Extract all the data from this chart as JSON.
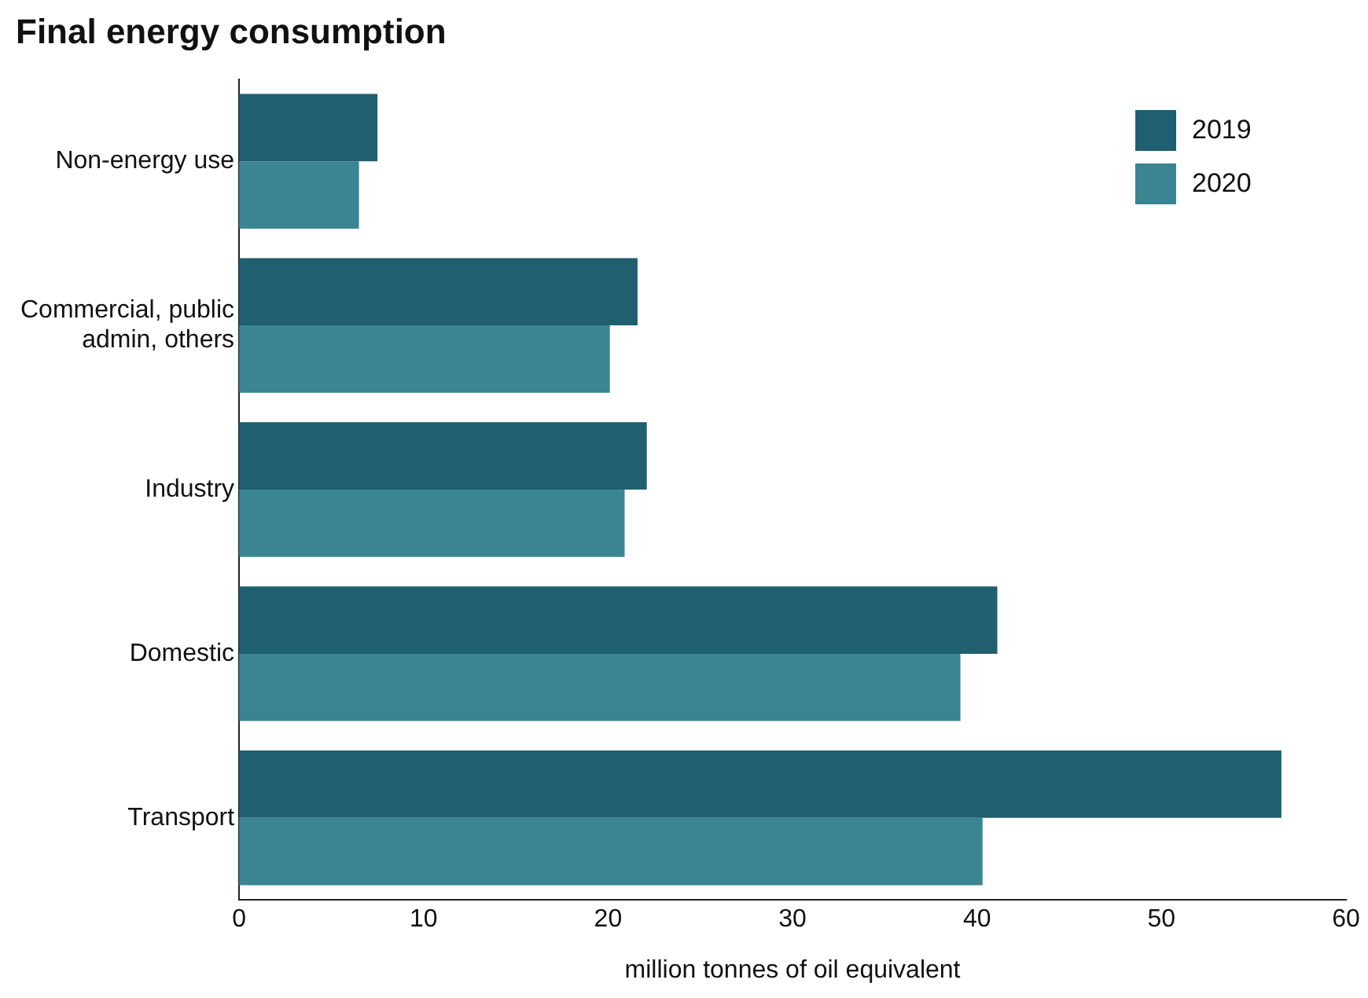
{
  "chart_data": {
    "type": "bar",
    "orientation": "horizontal",
    "title": "Final energy consumption",
    "xlabel": "million tonnes of oil equivalent",
    "categories": [
      "Non-energy use",
      "Commercial, public admin, others",
      "Industry",
      "Domestic",
      "Transport"
    ],
    "series": [
      {
        "name": "2019",
        "color": "#1f5f70",
        "values": [
          7.5,
          21.6,
          22.1,
          41.1,
          56.5
        ]
      },
      {
        "name": "2020",
        "color": "#3a8591",
        "values": [
          6.5,
          20.1,
          20.9,
          39.1,
          40.3
        ]
      }
    ],
    "xlim": [
      0,
      60
    ],
    "xticks": [
      0,
      10,
      20,
      30,
      40,
      50,
      60
    ],
    "grid": false,
    "legend": "top right"
  }
}
